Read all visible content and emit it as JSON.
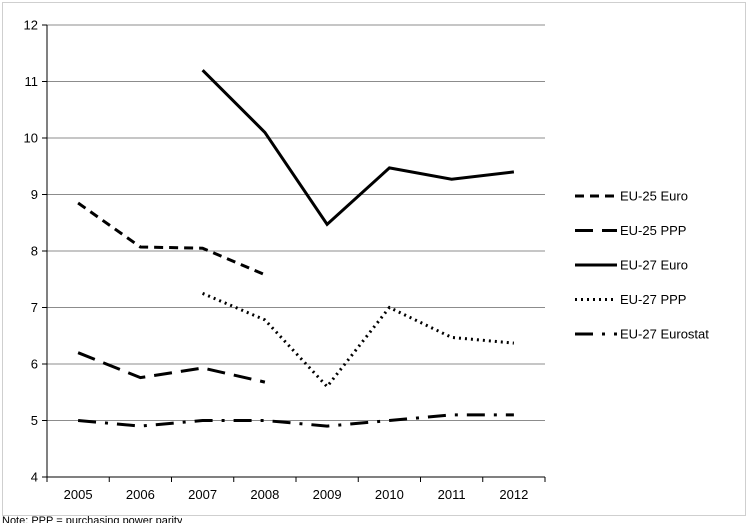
{
  "chart_data": {
    "type": "line",
    "title": "",
    "xlabel": "",
    "ylabel": "",
    "categories": [
      "2005",
      "2006",
      "2007",
      "2008",
      "2009",
      "2010",
      "2011",
      "2012"
    ],
    "yticks": [
      "4",
      "5",
      "6",
      "7",
      "8",
      "9",
      "10",
      "11",
      "12"
    ],
    "ylim": [
      4,
      12
    ],
    "grid": "horizontal",
    "legend_position": "right",
    "series": [
      {
        "name": "EU-25 Euro",
        "dash": "dashed",
        "values": [
          8.85,
          8.07,
          8.05,
          7.58,
          null,
          null,
          null,
          null
        ]
      },
      {
        "name": "EU-25 PPP",
        "dash": "long-dash",
        "values": [
          6.2,
          5.76,
          5.93,
          5.68,
          null,
          null,
          null,
          null
        ]
      },
      {
        "name": "EU-27 Euro",
        "dash": "solid",
        "values": [
          null,
          null,
          11.2,
          10.1,
          8.47,
          9.47,
          9.27,
          9.4
        ]
      },
      {
        "name": "EU-27 PPP",
        "dash": "dotted",
        "values": [
          null,
          null,
          7.25,
          6.78,
          5.6,
          7.0,
          6.47,
          6.37
        ]
      },
      {
        "name": "EU-27 Eurostat",
        "dash": "dash-dot",
        "values": [
          5.0,
          4.9,
          5.0,
          5.0,
          4.9,
          5.0,
          5.1,
          5.1
        ]
      }
    ],
    "colors": {
      "line": "#000000",
      "grid": "#8c8c8c",
      "axis": "#000000"
    }
  },
  "footer_note": "Note: PPP = purchasing power parity"
}
